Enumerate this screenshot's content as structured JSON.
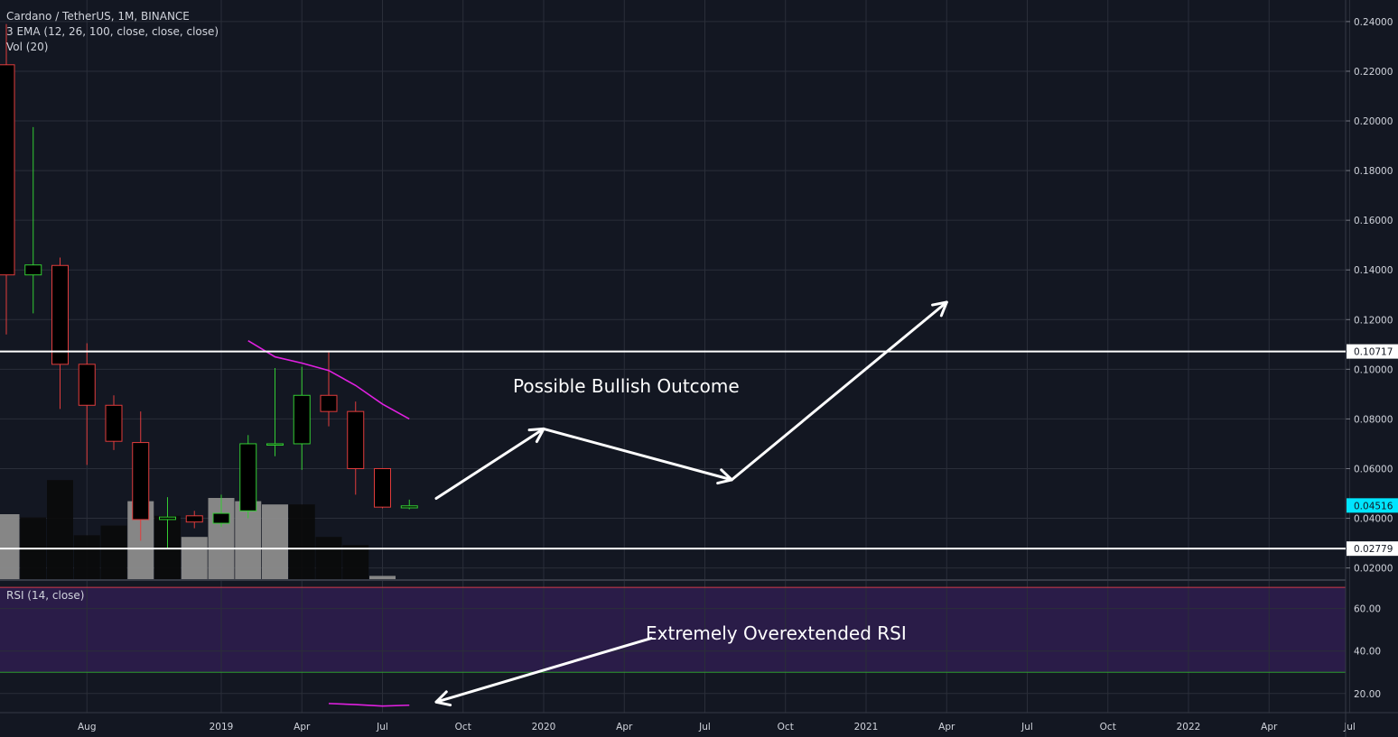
{
  "legend": {
    "symbol_line": "Cardano / TetherUS, 1M, BINANCE",
    "ema_line": "3 EMA (12, 26, 100, close, close, close)",
    "vol_line": "Vol (20)",
    "rsi_line": "RSI (14, close)"
  },
  "colors": {
    "background": "#131722",
    "grid": "#2a2e39",
    "up": "#33cc33",
    "down": "#e03c3c",
    "candle_body": "#000000",
    "ema": "#e020e0",
    "rsi_band": "#2a1c48",
    "rsi_upper": "#d33a4a",
    "rsi_lower": "#2e9a2e",
    "level": "#ffffff",
    "price_badge": "#00e5ff",
    "annotation": "#ffffff"
  },
  "chart_data": {
    "type": "candlestick",
    "price_axis": {
      "ticks": [
        "0.24000",
        "0.22000",
        "0.20000",
        "0.18000",
        "0.16000",
        "0.14000",
        "0.12000",
        "0.10000",
        "0.08000",
        "0.06000",
        "0.04000",
        "0.02000"
      ],
      "tick_values": [
        0.24,
        0.22,
        0.2,
        0.18,
        0.16,
        0.14,
        0.12,
        0.1,
        0.08,
        0.06,
        0.04,
        0.02
      ],
      "range": [
        0.0155,
        0.2465
      ]
    },
    "time_axis": {
      "labels": [
        "Aug",
        "2019",
        "Apr",
        "Jul",
        "Oct",
        "2020",
        "Apr",
        "Jul",
        "Oct",
        "2021",
        "Apr",
        "Jul",
        "Oct",
        "2022",
        "Apr",
        "Jul"
      ],
      "label_months": [
        "2018-08",
        "2019-01",
        "2019-04",
        "2019-07",
        "2019-10",
        "2020-01",
        "2020-04",
        "2020-07",
        "2020-10",
        "2021-01",
        "2021-04",
        "2021-07",
        "2021-10",
        "2022-01",
        "2022-04",
        "2022-07"
      ]
    },
    "candles": [
      {
        "month": "2018-05",
        "open": 0.2226,
        "high": 0.239,
        "low": 0.114,
        "close": 0.138
      },
      {
        "month": "2018-06",
        "open": 0.138,
        "high": 0.1975,
        "low": 0.1225,
        "close": 0.142
      },
      {
        "month": "2018-07",
        "open": 0.1418,
        "high": 0.145,
        "low": 0.084,
        "close": 0.102
      },
      {
        "month": "2018-08",
        "open": 0.102,
        "high": 0.1105,
        "low": 0.0615,
        "close": 0.0855
      },
      {
        "month": "2018-09",
        "open": 0.0855,
        "high": 0.0895,
        "low": 0.0675,
        "close": 0.071
      },
      {
        "month": "2018-10",
        "open": 0.0705,
        "high": 0.083,
        "low": 0.031,
        "close": 0.0395
      },
      {
        "month": "2018-11",
        "open": 0.0395,
        "high": 0.0485,
        "low": 0.0275,
        "close": 0.0405
      },
      {
        "month": "2018-12",
        "open": 0.041,
        "high": 0.043,
        "low": 0.036,
        "close": 0.0385
      },
      {
        "month": "2019-01",
        "open": 0.038,
        "high": 0.0495,
        "low": 0.0365,
        "close": 0.042
      },
      {
        "month": "2019-02",
        "open": 0.043,
        "high": 0.0735,
        "low": 0.04,
        "close": 0.07
      },
      {
        "month": "2019-03",
        "open": 0.07,
        "high": 0.1005,
        "low": 0.065,
        "close": 0.07
      },
      {
        "month": "2019-04",
        "open": 0.07,
        "high": 0.101,
        "low": 0.0595,
        "close": 0.0895
      },
      {
        "month": "2019-05",
        "open": 0.0895,
        "high": 0.1075,
        "low": 0.077,
        "close": 0.083
      },
      {
        "month": "2019-06",
        "open": 0.083,
        "high": 0.087,
        "low": 0.0495,
        "close": 0.06
      },
      {
        "month": "2019-07",
        "open": 0.06,
        "high": 0.06,
        "low": 0.044,
        "close": 0.0445
      },
      {
        "month": "2019-08",
        "open": 0.0442,
        "high": 0.0475,
        "low": 0.0436,
        "close": 0.045
      }
    ],
    "volume": [
      {
        "month": "2018-04",
        "value": 0.27,
        "up": false
      },
      {
        "month": "2018-05",
        "value": 0.4,
        "up": true
      },
      {
        "month": "2018-06",
        "value": 0.38,
        "up": false
      },
      {
        "month": "2018-07",
        "value": 0.61,
        "up": false
      },
      {
        "month": "2018-08",
        "value": 0.27,
        "up": false
      },
      {
        "month": "2018-09",
        "value": 0.33,
        "up": false
      },
      {
        "month": "2018-10",
        "value": 0.48,
        "up": true
      },
      {
        "month": "2018-11",
        "value": 0.39,
        "up": false
      },
      {
        "month": "2018-12",
        "value": 0.26,
        "up": true
      },
      {
        "month": "2019-01",
        "value": 0.5,
        "up": true
      },
      {
        "month": "2019-02",
        "value": 0.48,
        "up": true
      },
      {
        "month": "2019-03",
        "value": 0.46,
        "up": true
      },
      {
        "month": "2019-04",
        "value": 0.46,
        "up": false
      },
      {
        "month": "2019-05",
        "value": 0.26,
        "up": false
      },
      {
        "month": "2019-06",
        "value": 0.21,
        "up": false
      },
      {
        "month": "2019-07",
        "value": 0.02,
        "up": true
      }
    ],
    "ema_line": [
      {
        "month": "2019-02",
        "value": 0.1115
      },
      {
        "month": "2019-03",
        "value": 0.105
      },
      {
        "month": "2019-04",
        "value": 0.1025
      },
      {
        "month": "2019-05",
        "value": 0.0995
      },
      {
        "month": "2019-06",
        "value": 0.0935
      },
      {
        "month": "2019-07",
        "value": 0.086
      },
      {
        "month": "2019-08",
        "value": 0.08
      }
    ],
    "levels": [
      {
        "value": 0.10717,
        "label": "0.10717"
      },
      {
        "value": 0.02779,
        "label": "0.02779"
      }
    ],
    "current_price": {
      "value": 0.04516,
      "label": "0.04516"
    },
    "rsi": {
      "ticks": [
        "60.00",
        "40.00",
        "20.00"
      ],
      "tick_values": [
        60,
        40,
        20
      ],
      "range": [
        11,
        73
      ],
      "upper": 70,
      "lower": 30,
      "line": [
        {
          "month": "2019-05",
          "value": 15.3
        },
        {
          "month": "2019-06",
          "value": 14.8
        },
        {
          "month": "2019-07",
          "value": 14.1
        },
        {
          "month": "2019-08",
          "value": 14.5
        }
      ]
    },
    "annotations": {
      "bullish_text": "Possible Bullish Outcome",
      "rsi_text": "Extremely Overextended RSI",
      "path": [
        {
          "month": "2019-09",
          "value": 0.048
        },
        {
          "month": "2020-01",
          "value": 0.076
        },
        {
          "month": "2020-08",
          "value": 0.0555
        },
        {
          "month": "2021-04",
          "value": 0.127
        }
      ],
      "rsi_arrow": [
        {
          "month": "2020-05",
          "value": 46.0
        },
        {
          "month": "2019-09",
          "value": 16.0
        }
      ]
    }
  }
}
